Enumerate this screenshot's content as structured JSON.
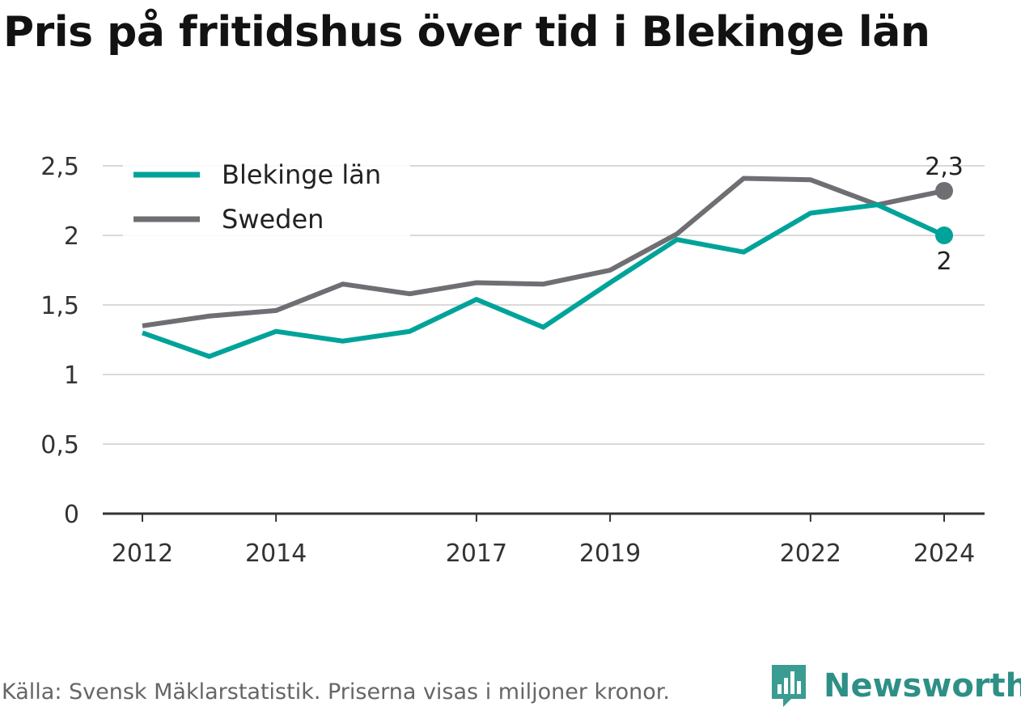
{
  "chart_data": {
    "type": "line",
    "title": "Pris på fritidshus över tid i Blekinge län",
    "x": [
      2012,
      2013,
      2014,
      2015,
      2016,
      2017,
      2018,
      2019,
      2020,
      2021,
      2022,
      2023,
      2024
    ],
    "x_tick_labels": [
      "2012",
      "2014",
      "2017",
      "2019",
      "2022",
      "2024"
    ],
    "y_tick_labels": [
      "0",
      "0,5",
      "1",
      "1,5",
      "2",
      "2,5"
    ],
    "ylim": [
      0,
      2.5
    ],
    "grid": true,
    "legend_position": "top-left",
    "series": [
      {
        "name": "Blekinge län",
        "color": "#00a39a",
        "values": [
          1.3,
          1.13,
          1.31,
          1.24,
          1.31,
          1.54,
          1.34,
          1.66,
          1.97,
          1.88,
          2.16,
          2.22,
          2.0
        ],
        "end_label": "2"
      },
      {
        "name": "Sweden",
        "color": "#6f6e73",
        "values": [
          1.35,
          1.42,
          1.46,
          1.65,
          1.58,
          1.66,
          1.65,
          1.75,
          2.01,
          2.41,
          2.4,
          2.22,
          2.32
        ],
        "end_label": "2,3"
      }
    ]
  },
  "footer": {
    "source": "Källa: Svensk Mäklarstatistik. Priserna visas i miljoner kronor."
  },
  "brand": {
    "name": "Newsworthy",
    "color": "#2e8f86",
    "icon": "newsworthy-logo-icon"
  }
}
